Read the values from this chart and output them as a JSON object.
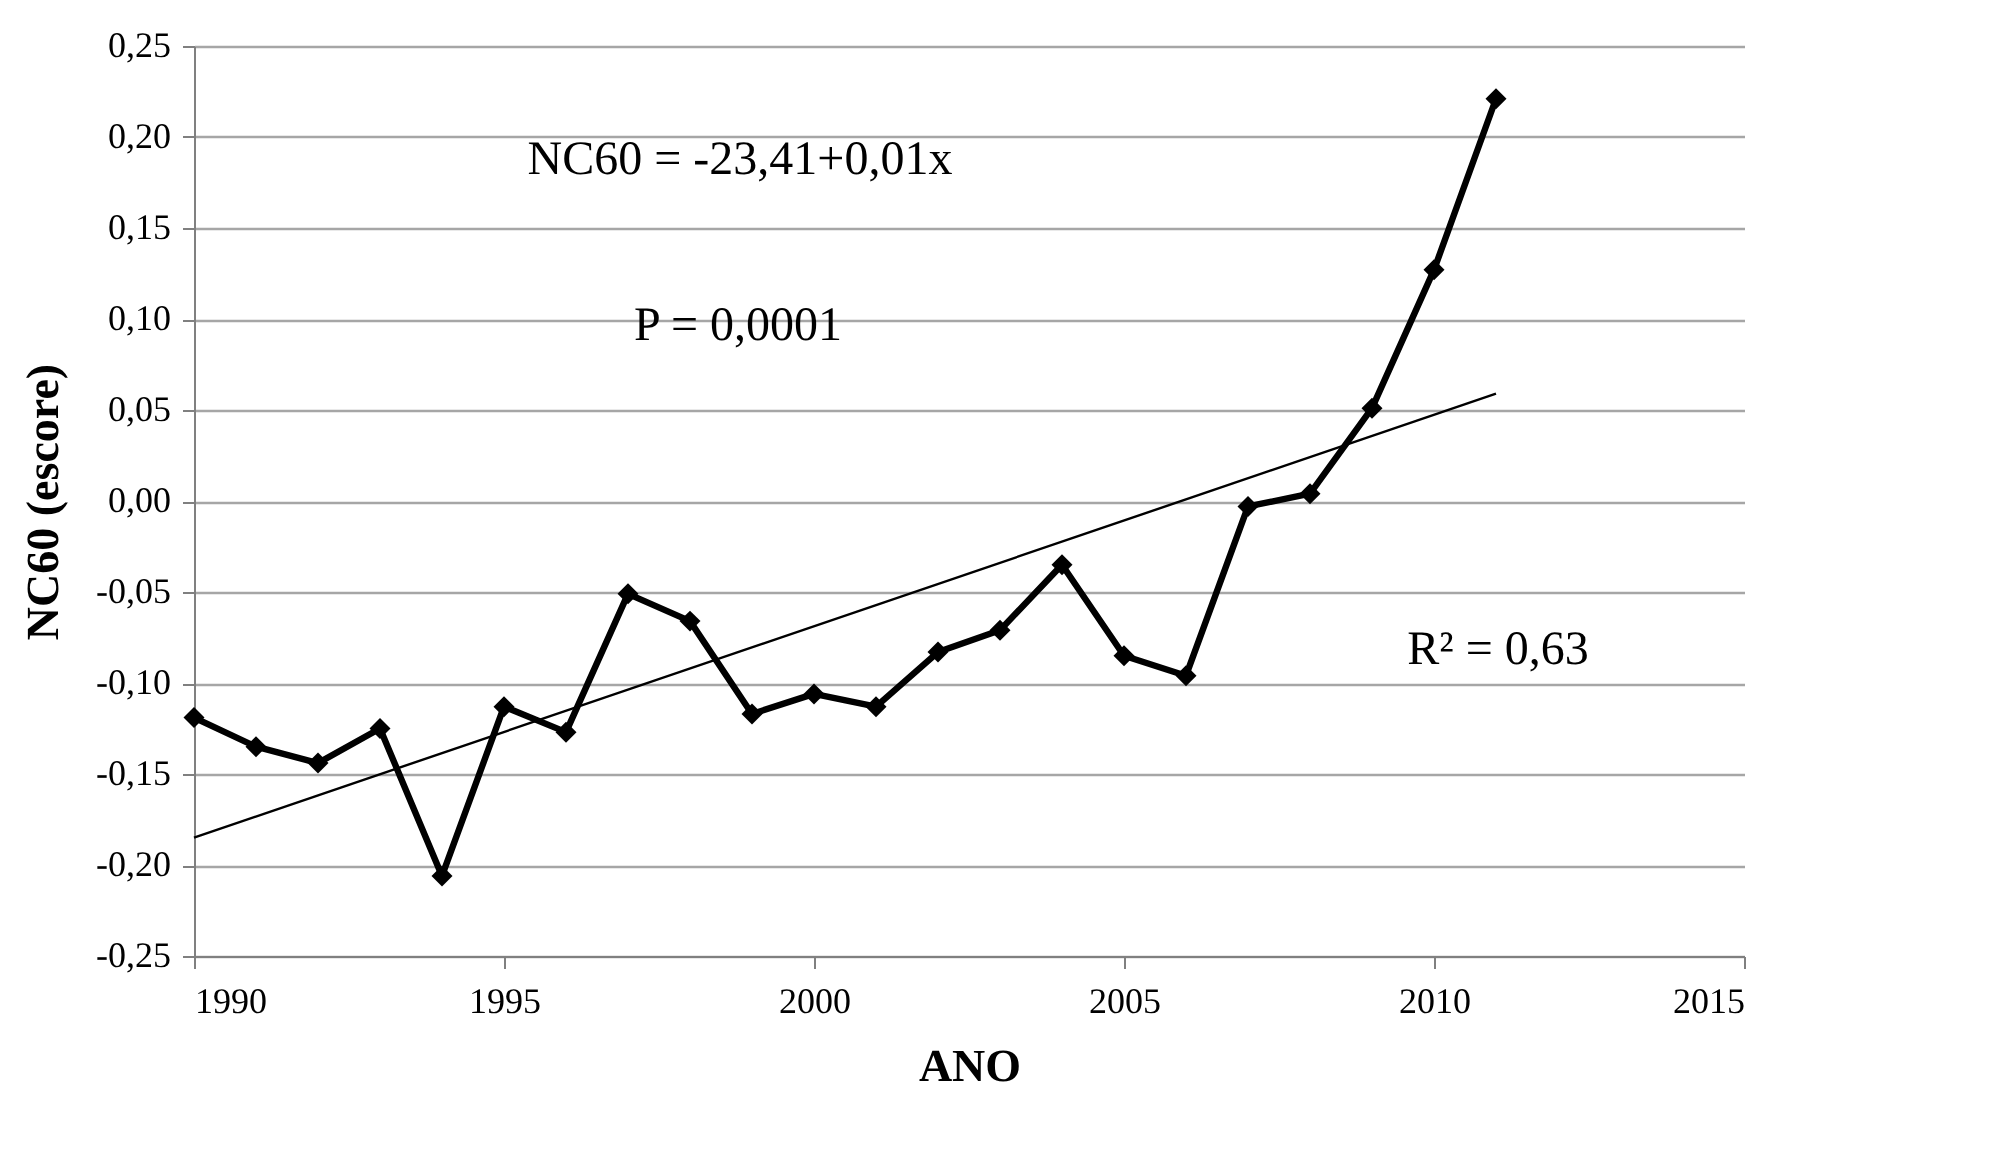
{
  "chart_data": {
    "type": "line",
    "xlabel": "ANO",
    "ylabel": "NC60 (escore)",
    "x": [
      1990,
      1991,
      1992,
      1993,
      1994,
      1995,
      1996,
      1997,
      1998,
      1999,
      2000,
      2001,
      2002,
      2003,
      2004,
      2005,
      2006,
      2007,
      2008,
      2009,
      2010,
      2011
    ],
    "series": [
      {
        "color": "#000000",
        "marker": "diamond",
        "values": [
          -0.119,
          -0.135,
          -0.144,
          -0.125,
          -0.206,
          -0.113,
          -0.127,
          -0.051,
          -0.066,
          -0.117,
          -0.106,
          -0.113,
          -0.083,
          -0.071,
          -0.035,
          -0.085,
          -0.096,
          -0.003,
          0.004,
          0.051,
          0.127,
          0.221
        ]
      },
      {
        "type": "line",
        "color": "#000000",
        "marker": "none",
        "x": [
          1990,
          2011
        ],
        "values": [
          -0.185,
          0.059
        ]
      }
    ],
    "xlim": [
      1990,
      2015
    ],
    "xticks": [
      1990,
      1995,
      2000,
      2005,
      2010,
      2015
    ],
    "ylim": [
      -0.25,
      0.25
    ],
    "yticks": [
      {
        "value": -0.25,
        "label": "-0,25"
      },
      {
        "value": -0.2,
        "label": "-0,20"
      },
      {
        "value": -0.15,
        "label": "-0,15"
      },
      {
        "value": -0.1,
        "label": "-0,10"
      },
      {
        "value": -0.05,
        "label": "-0,05"
      },
      {
        "value": 0,
        "label": "0,00"
      },
      {
        "value": 0.05,
        "label": "0,05"
      },
      {
        "value": 0.1,
        "label": "0,10"
      },
      {
        "value": 0.15,
        "label": "0,15"
      },
      {
        "value": 0.2,
        "label": "0,20"
      },
      {
        "value": 0.25,
        "label": "0,25"
      }
    ],
    "grid": "y",
    "line_style": "solid",
    "annotations": [
      "NC60 = -23,41+0,01x",
      "P = 0,0001",
      "R² = 0,63"
    ]
  }
}
